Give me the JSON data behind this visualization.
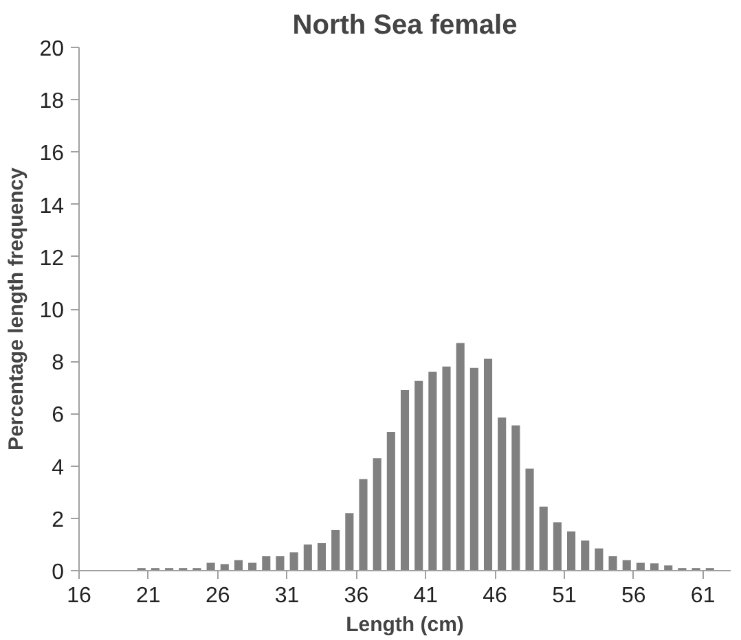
{
  "chart_data": {
    "type": "histogram",
    "title": "North Sea female",
    "xlabel": "Length (cm)",
    "ylabel": "Percentage length frequency",
    "bins": [
      16,
      17,
      18,
      19,
      20,
      21,
      22,
      23,
      24,
      25,
      26,
      27,
      28,
      29,
      30,
      31,
      32,
      33,
      34,
      35,
      36,
      37,
      38,
      39,
      40,
      41,
      42,
      43,
      44,
      45,
      46,
      47,
      48,
      49,
      50,
      51,
      52,
      53,
      54,
      55,
      56,
      57,
      58,
      59,
      60,
      61,
      62
    ],
    "values": [
      0,
      0,
      0,
      0,
      0.1,
      0.1,
      0.1,
      0.1,
      0.1,
      0.3,
      0.25,
      0.4,
      0.3,
      0.55,
      0.55,
      0.7,
      1.0,
      1.05,
      1.55,
      2.2,
      3.5,
      4.3,
      5.3,
      6.9,
      7.25,
      7.6,
      7.8,
      8.7,
      7.75,
      8.1,
      5.85,
      5.55,
      3.9,
      2.45,
      1.85,
      1.5,
      1.15,
      0.85,
      0.55,
      0.4,
      0.3,
      0.28,
      0.2,
      0.1,
      0.1,
      0.1
    ],
    "color": "#808080",
    "xlim": [
      16,
      63
    ],
    "xticks": [
      16,
      21,
      26,
      31,
      36,
      41,
      46,
      51,
      56,
      61
    ],
    "ylim": [
      0,
      20
    ],
    "yticks": [
      0,
      2,
      4,
      6,
      8,
      10,
      12,
      14,
      16,
      18,
      20
    ],
    "grid": false
  }
}
